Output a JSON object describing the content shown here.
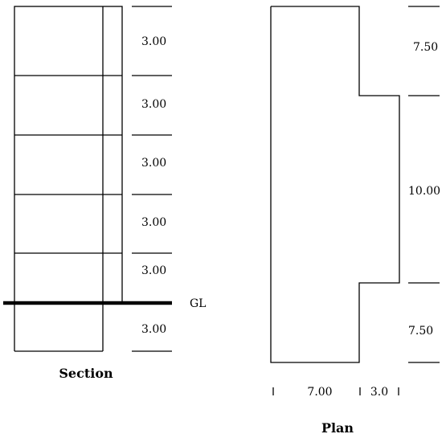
{
  "section": {
    "caption": "Section",
    "storey_heights": [
      "3.00",
      "3.00",
      "3.00",
      "3.00",
      "3.00"
    ],
    "basement_height": "3.00",
    "ground_label": "GL"
  },
  "plan": {
    "caption": "Plan",
    "vertical_dims": [
      "7.50",
      "10.00",
      "7.50"
    ],
    "horizontal_dims": [
      "7.00",
      "3.0"
    ]
  }
}
